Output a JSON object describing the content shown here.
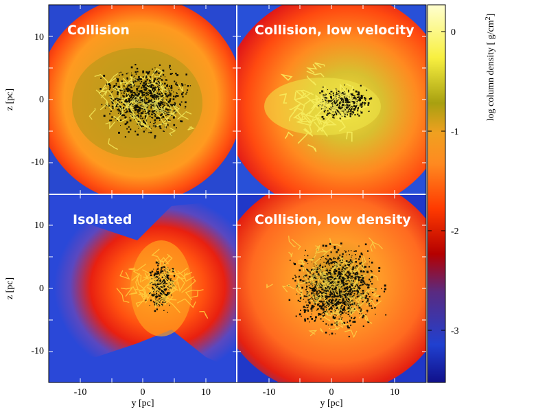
{
  "figure": {
    "panels": [
      {
        "id": "tl",
        "label": "Collision"
      },
      {
        "id": "tr",
        "label": "Collision, low velocity"
      },
      {
        "id": "bl",
        "label": "Isolated"
      },
      {
        "id": "br",
        "label": "Collision, low density"
      }
    ],
    "axes": {
      "xlabel": "y [pc]",
      "ylabel": "z [pc]",
      "x_ticks": [
        "-10",
        "0",
        "10"
      ],
      "y_ticks": [
        "10",
        "0",
        "-10"
      ],
      "range": [
        -15,
        15
      ]
    },
    "colorbar": {
      "label_prefix": "log column density [ g/cm",
      "label_sup": "2",
      "label_suffix": "]",
      "ticks": [
        "0",
        "-1",
        "-2",
        "-3"
      ],
      "range": [
        -3.5,
        0.3
      ],
      "colors": [
        "#10108a",
        "#2040d0",
        "#5a2a80",
        "#b40000",
        "#ff3a00",
        "#ff8a20",
        "#f0a020",
        "#a8a010",
        "#f8f040",
        "#ffffd0"
      ]
    }
  }
}
